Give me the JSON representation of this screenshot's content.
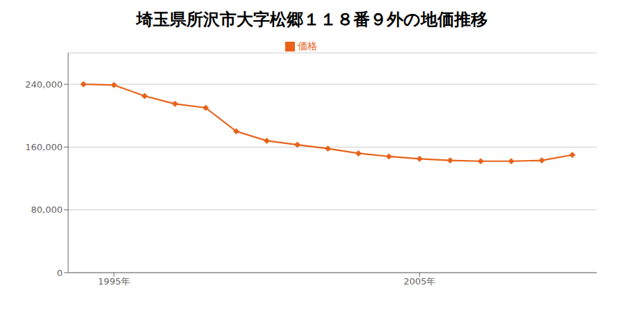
{
  "chart_data": {
    "type": "line",
    "title": "埼玉県所沢市大字松郷１１８番９外の地価推移",
    "x": [
      1994,
      1995,
      1996,
      1997,
      1998,
      1999,
      2000,
      2001,
      2002,
      2003,
      2004,
      2005,
      2006,
      2007,
      2008,
      2009,
      2010
    ],
    "series": [
      {
        "name": "価格",
        "color": "#e8621a",
        "marker": "diamond",
        "values": [
          240000,
          239000,
          225000,
          215000,
          210000,
          180000,
          168000,
          163000,
          158000,
          152000,
          148000,
          145000,
          143000,
          142000,
          142000,
          143000,
          150000
        ]
      }
    ],
    "xlim": [
      1993.5,
      2010.8
    ],
    "xticks": [
      {
        "value": 1995,
        "label": "1995年"
      },
      {
        "value": 2005,
        "label": "2005年"
      }
    ],
    "ylim": [
      0,
      280000
    ],
    "yticks": [
      0,
      {
        "value": 80000,
        "label": "80,000"
      },
      {
        "value": 160000,
        "label": "160,000"
      },
      {
        "value": 240000,
        "label": "240,000"
      }
    ],
    "grid": true,
    "legend": "top"
  }
}
